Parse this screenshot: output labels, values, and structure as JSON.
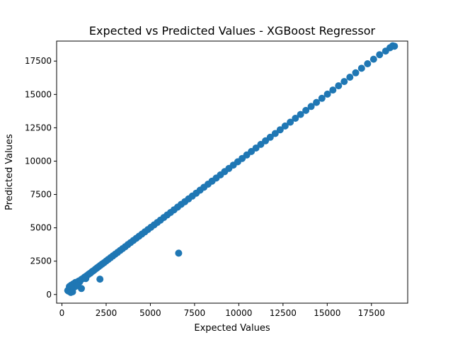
{
  "chart_data": {
    "type": "scatter",
    "title": "Expected vs Predicted Values - XGBoost Regressor",
    "xlabel": "Expected Values",
    "ylabel": "Predicted Values",
    "xlim": [
      -300,
      19550
    ],
    "ylim": [
      -650,
      19000
    ],
    "xticks": [
      0,
      2500,
      5000,
      7500,
      10000,
      12500,
      15000,
      17500
    ],
    "yticks": [
      0,
      2500,
      5000,
      7500,
      10000,
      12500,
      15000,
      17500
    ],
    "grid": false,
    "marker_color": "#1f77b4",
    "series": [
      {
        "x": [
          330,
          380,
          420,
          470,
          520,
          560,
          610,
          650,
          700,
          760,
          820,
          880,
          940,
          1000,
          1060,
          1120,
          1200,
          1280,
          1360,
          1440,
          1530,
          1620,
          1710,
          1800,
          1890,
          1980,
          2070,
          2170,
          2270,
          2380,
          2500,
          2620,
          2750,
          2880,
          3010,
          3150,
          3290,
          3430,
          3580,
          3730,
          3880,
          4040,
          4200,
          4360,
          4520,
          4690,
          4860,
          5030,
          5210,
          5390,
          5570,
          5760,
          5950,
          6140,
          6340,
          6540,
          6740,
          6950,
          7160,
          7370,
          7590,
          7810,
          8030,
          8260,
          8490,
          8720,
          8960,
          9200,
          9440,
          9690,
          9940,
          10190,
          10450,
          10710,
          10970,
          11240,
          11510,
          11780,
          12060,
          12340,
          12620,
          12910,
          13200,
          13490,
          13790,
          14090,
          14390,
          14700,
          15010,
          15320,
          15640,
          15960,
          16280,
          16610,
          16940,
          17280,
          17620,
          17960,
          18300,
          18550,
          18700,
          18800,
          500,
          600,
          900,
          1100,
          1350,
          2150,
          6600
        ],
        "y": [
          300,
          250,
          600,
          450,
          700,
          300,
          650,
          800,
          550,
          900,
          760,
          850,
          1000,
          950,
          1080,
          1150,
          1210,
          1300,
          1370,
          1450,
          1540,
          1620,
          1720,
          1800,
          1900,
          1990,
          2080,
          2180,
          2280,
          2380,
          2510,
          2630,
          2760,
          2890,
          3020,
          3160,
          3300,
          3440,
          3590,
          3740,
          3890,
          4050,
          4210,
          4370,
          4530,
          4700,
          4870,
          5040,
          5220,
          5400,
          5580,
          5770,
          5960,
          6150,
          6350,
          6550,
          6760,
          6960,
          7170,
          7380,
          7600,
          7820,
          8040,
          8270,
          8500,
          8730,
          8970,
          9210,
          9450,
          9700,
          9950,
          10200,
          10460,
          10720,
          10980,
          11250,
          11520,
          11790,
          12070,
          12350,
          12630,
          12920,
          13210,
          13500,
          13800,
          14100,
          14400,
          14710,
          15020,
          15330,
          15650,
          15970,
          16290,
          16620,
          16960,
          17300,
          17640,
          17980,
          18250,
          18500,
          18650,
          18620,
          150,
          200,
          650,
          450,
          1200,
          1150,
          3100
        ]
      }
    ]
  }
}
